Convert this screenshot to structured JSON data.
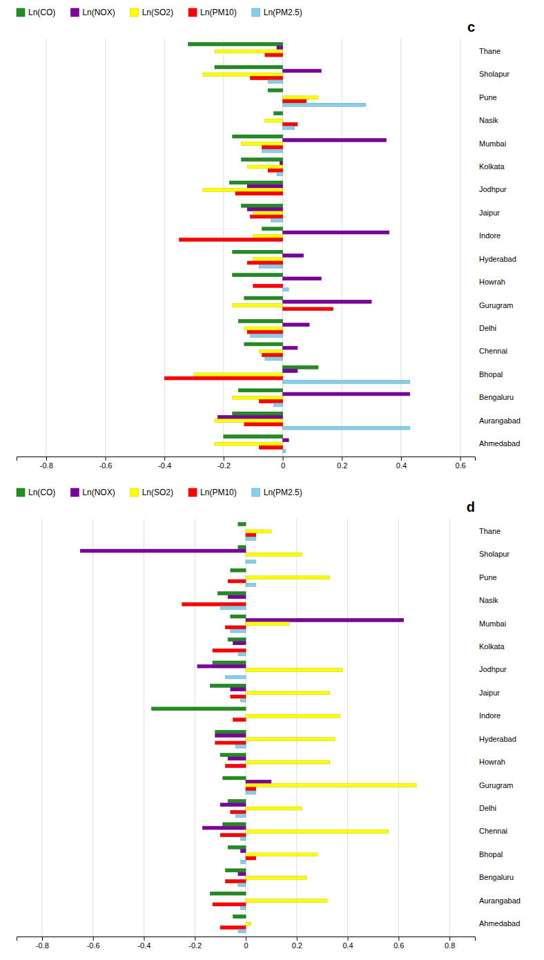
{
  "chart_data": [
    {
      "type": "bar",
      "orientation": "horizontal",
      "title": "c",
      "categories": [
        "Thane",
        "Sholapur",
        "Pune",
        "Nasik",
        "Mumbai",
        "Kolkata",
        "Jodhpur",
        "Jaipur",
        "Indore",
        "Hyderabad",
        "Howrah",
        "Gurugram",
        "Delhi",
        "Chennai",
        "Bhopal",
        "Bengaluru",
        "Aurangabad",
        "Ahmedabad"
      ],
      "series": [
        {
          "name": "Ln(CO)",
          "color": "#228B22",
          "values": [
            -0.32,
            -0.23,
            -0.05,
            -0.03,
            -0.17,
            -0.14,
            -0.18,
            -0.14,
            -0.07,
            -0.17,
            -0.17,
            -0.13,
            -0.15,
            -0.13,
            0.12,
            -0.15,
            -0.17,
            -0.2
          ]
        },
        {
          "name": "Ln(NOX)",
          "color": "#7B0099",
          "values": [
            -0.02,
            0.13,
            0.0,
            0.0,
            0.35,
            -0.01,
            -0.12,
            -0.12,
            0.36,
            0.07,
            0.13,
            0.3,
            0.09,
            0.05,
            0.05,
            0.43,
            -0.22,
            0.02
          ]
        },
        {
          "name": "Ln(SO2)",
          "color": "#FFFF00",
          "values": [
            -0.23,
            -0.27,
            0.12,
            -0.06,
            -0.14,
            -0.12,
            -0.27,
            -0.1,
            -0.1,
            -0.1,
            0.0,
            -0.17,
            -0.13,
            -0.08,
            -0.3,
            -0.17,
            -0.23,
            -0.23
          ]
        },
        {
          "name": "Ln(PM10)",
          "color": "#FF0000",
          "values": [
            -0.06,
            -0.11,
            0.08,
            0.05,
            -0.07,
            -0.05,
            -0.16,
            -0.11,
            -0.35,
            -0.12,
            -0.1,
            0.17,
            -0.12,
            -0.07,
            -0.4,
            -0.08,
            -0.13,
            -0.08
          ]
        },
        {
          "name": "Ln(PM2.5)",
          "color": "#87CEEB",
          "values": [
            0.0,
            -0.05,
            0.28,
            0.04,
            -0.07,
            -0.02,
            0.0,
            -0.04,
            0.0,
            -0.08,
            0.02,
            0.0,
            -0.11,
            -0.06,
            0.43,
            -0.03,
            0.43,
            0.01
          ]
        }
      ],
      "xlim": [
        -0.9,
        0.65
      ],
      "xticks": [
        -0.8,
        -0.6,
        -0.4,
        -0.2,
        0,
        0.2,
        0.4,
        0.6
      ],
      "grid": true,
      "legend": "top"
    },
    {
      "type": "bar",
      "orientation": "horizontal",
      "title": "d",
      "categories": [
        "Thane",
        "Sholapur",
        "Pune",
        "Nasik",
        "Mumbai",
        "Kolkata",
        "Jodhpur",
        "Jaipur",
        "Indore",
        "Hyderabad",
        "Howrah",
        "Gurugram",
        "Delhi",
        "Chennai",
        "Bhopal",
        "Bengaluru",
        "Aurangabad",
        "Ahmedabad"
      ],
      "series": [
        {
          "name": "Ln(CO)",
          "color": "#228B22",
          "values": [
            -0.03,
            -0.03,
            -0.06,
            -0.11,
            -0.06,
            -0.07,
            -0.13,
            -0.14,
            -0.37,
            -0.12,
            -0.1,
            -0.09,
            -0.07,
            -0.09,
            -0.07,
            -0.08,
            -0.14,
            -0.05
          ]
        },
        {
          "name": "Ln(NOX)",
          "color": "#7B0099",
          "values": [
            0.0,
            -0.65,
            0.0,
            -0.07,
            0.62,
            -0.05,
            -0.19,
            -0.06,
            0.0,
            -0.12,
            -0.07,
            0.1,
            -0.1,
            -0.17,
            -0.02,
            -0.03,
            0.0,
            0.0
          ]
        },
        {
          "name": "Ln(SO2)",
          "color": "#FFFF00",
          "values": [
            0.1,
            0.22,
            0.33,
            0.0,
            0.17,
            0.0,
            0.38,
            0.33,
            0.37,
            0.35,
            0.33,
            0.67,
            0.22,
            0.56,
            0.28,
            0.24,
            0.32,
            0.02
          ]
        },
        {
          "name": "Ln(PM10)",
          "color": "#FF0000",
          "values": [
            0.04,
            0.0,
            -0.07,
            -0.25,
            -0.08,
            -0.13,
            0.0,
            -0.06,
            -0.05,
            -0.12,
            -0.08,
            0.04,
            -0.06,
            -0.1,
            0.04,
            -0.08,
            -0.13,
            -0.1
          ]
        },
        {
          "name": "Ln(PM2.5)",
          "color": "#87CEEB",
          "values": [
            0.04,
            0.04,
            0.04,
            -0.1,
            -0.06,
            -0.03,
            -0.08,
            -0.02,
            0.0,
            -0.04,
            0.0,
            0.04,
            -0.04,
            -0.02,
            -0.02,
            -0.03,
            -0.02,
            -0.03
          ]
        }
      ],
      "xlim": [
        -0.9,
        0.9
      ],
      "xticks": [
        -0.8,
        -0.6,
        -0.4,
        -0.2,
        0,
        0.2,
        0.4,
        0.6,
        0.8
      ],
      "grid": true,
      "legend": "top"
    }
  ]
}
